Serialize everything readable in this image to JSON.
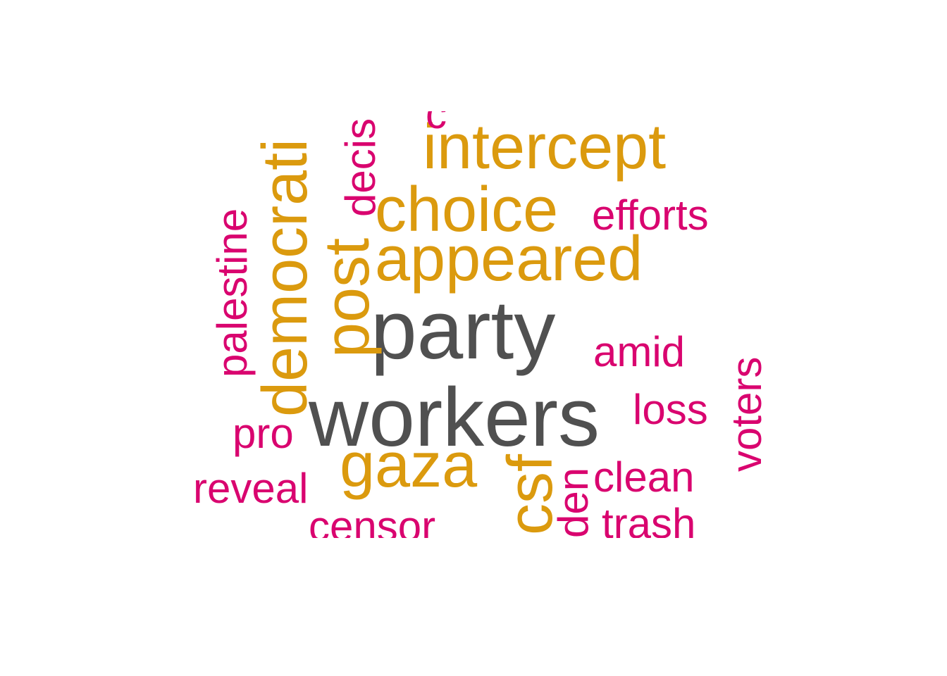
{
  "colors": {
    "dark": "#505050",
    "gold": "#DB9A0E",
    "magenta": "#D9046F",
    "background": "#FFFFFF"
  },
  "words": {
    "party": "party",
    "workers": "workers",
    "democrati": "democrati",
    "post": "post",
    "intercept": "intercept",
    "choice": "choice",
    "appeared": "appeared",
    "gaza": "gaza",
    "csf": "csf",
    "palestine": "palestine",
    "decis": "decis",
    "efforts": "efforts",
    "amid": "amid",
    "loss": "loss",
    "voters": "voters",
    "pro": "pro",
    "reveal": "reveal",
    "den": "den",
    "clean": "clean",
    "trash": "trash",
    "censor": "censor",
    "top_fragment": "c"
  }
}
